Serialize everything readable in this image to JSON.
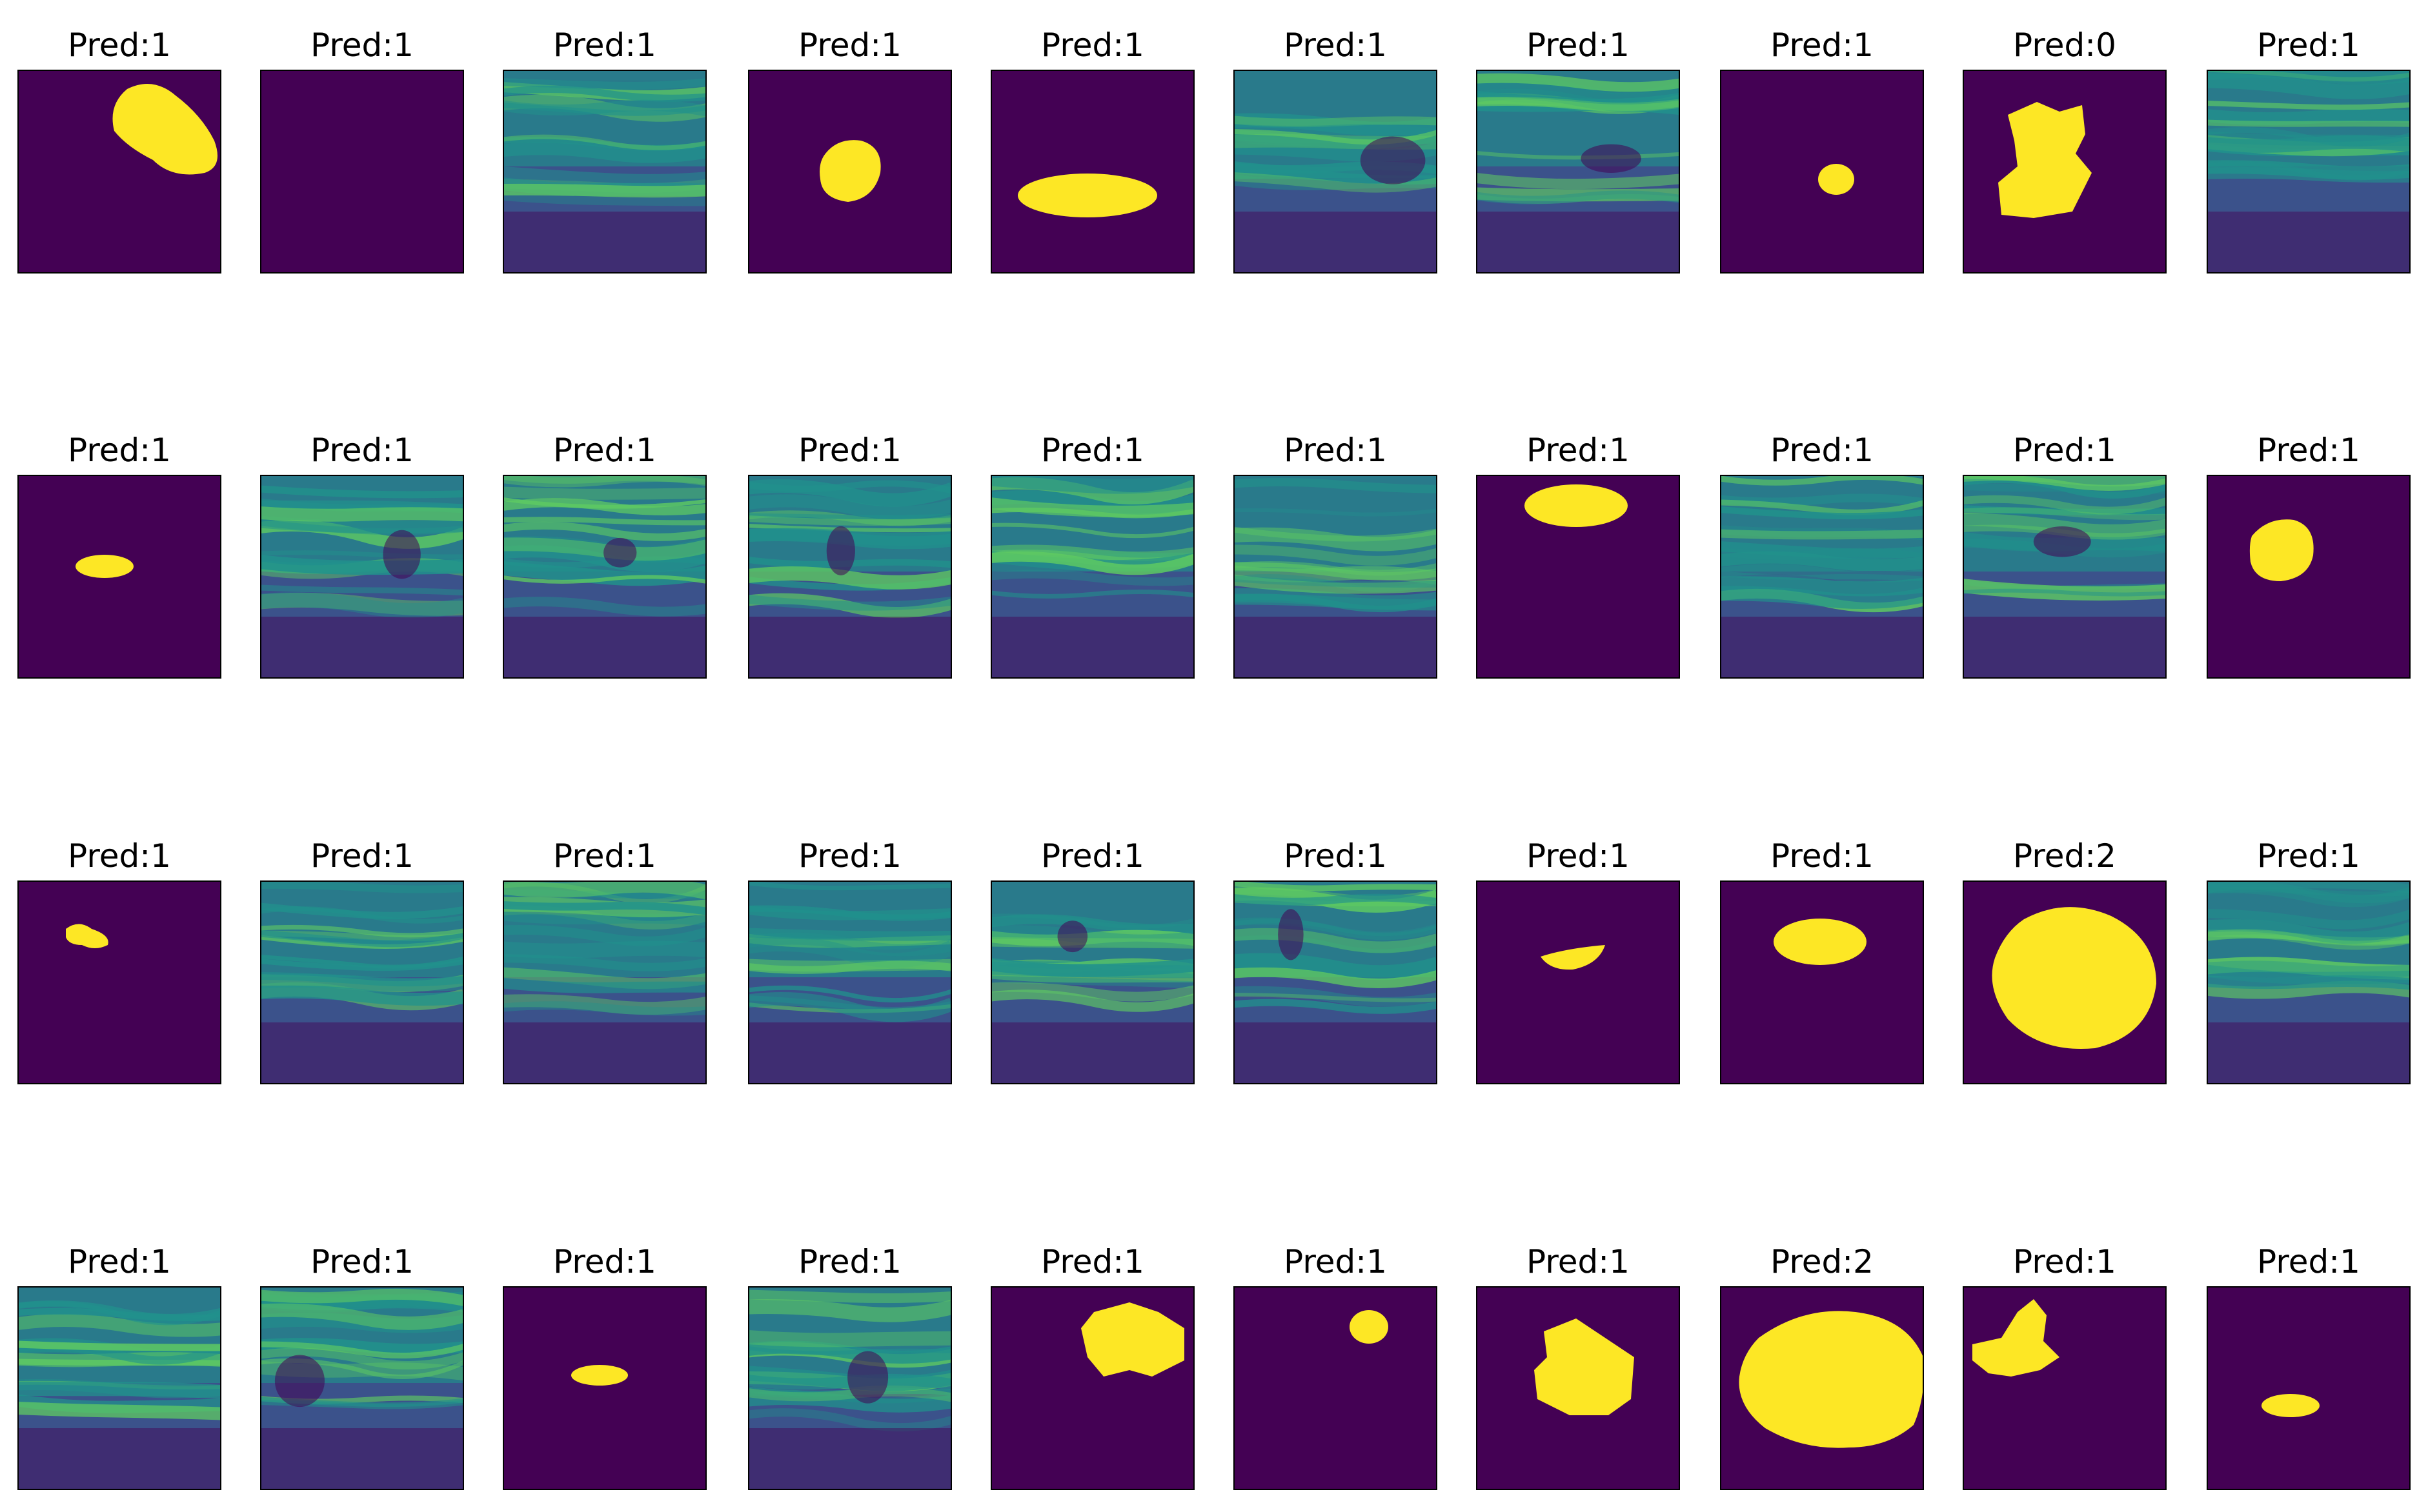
{
  "colors": {
    "background": "#440154",
    "mask": "#fde725",
    "ultrasound_dark": "#3b528b",
    "ultrasound_mid": "#21918c",
    "ultrasound_bright": "#5ec962",
    "frame": "#000000"
  },
  "tiles": [
    {
      "title": "Pred:1",
      "kind": "mask",
      "shape": "blob-top-right"
    },
    {
      "title": "Pred:1",
      "kind": "empty"
    },
    {
      "title": "Pred:1",
      "kind": "ultrasound"
    },
    {
      "title": "Pred:1",
      "kind": "mask",
      "shape": "small-round-center"
    },
    {
      "title": "Pred:1",
      "kind": "mask",
      "shape": "wide-ellipse"
    },
    {
      "title": "Pred:1",
      "kind": "ultrasound"
    },
    {
      "title": "Pred:1",
      "kind": "ultrasound"
    },
    {
      "title": "Pred:1",
      "kind": "mask",
      "shape": "tiny-center"
    },
    {
      "title": "Pred:0",
      "kind": "mask",
      "shape": "irregular-large"
    },
    {
      "title": "Pred:1",
      "kind": "ultrasound"
    },
    {
      "title": "Pred:1",
      "kind": "mask",
      "shape": "small-ellipse-left"
    },
    {
      "title": "Pred:1",
      "kind": "ultrasound"
    },
    {
      "title": "Pred:1",
      "kind": "ultrasound"
    },
    {
      "title": "Pred:1",
      "kind": "ultrasound"
    },
    {
      "title": "Pred:1",
      "kind": "ultrasound"
    },
    {
      "title": "Pred:1",
      "kind": "ultrasound"
    },
    {
      "title": "Pred:1",
      "kind": "mask",
      "shape": "ellipse-top"
    },
    {
      "title": "Pred:1",
      "kind": "ultrasound"
    },
    {
      "title": "Pred:1",
      "kind": "ultrasound"
    },
    {
      "title": "Pred:1",
      "kind": "mask",
      "shape": "round-left"
    },
    {
      "title": "Pred:1",
      "kind": "mask",
      "shape": "tiny-left"
    },
    {
      "title": "Pred:1",
      "kind": "ultrasound"
    },
    {
      "title": "Pred:1",
      "kind": "ultrasound"
    },
    {
      "title": "Pred:1",
      "kind": "ultrasound"
    },
    {
      "title": "Pred:1",
      "kind": "ultrasound"
    },
    {
      "title": "Pred:1",
      "kind": "ultrasound"
    },
    {
      "title": "Pred:1",
      "kind": "mask",
      "shape": "thin-crescent"
    },
    {
      "title": "Pred:1",
      "kind": "mask",
      "shape": "ellipse-mid"
    },
    {
      "title": "Pred:2",
      "kind": "mask",
      "shape": "huge-round"
    },
    {
      "title": "Pred:1",
      "kind": "ultrasound"
    },
    {
      "title": "Pred:1",
      "kind": "ultrasound"
    },
    {
      "title": "Pred:1",
      "kind": "ultrasound"
    },
    {
      "title": "Pred:1",
      "kind": "mask",
      "shape": "small-lozenge"
    },
    {
      "title": "Pred:1",
      "kind": "ultrasound"
    },
    {
      "title": "Pred:1",
      "kind": "mask",
      "shape": "irregular-top-right"
    },
    {
      "title": "Pred:1",
      "kind": "mask",
      "shape": "tiny-top-right"
    },
    {
      "title": "Pred:1",
      "kind": "mask",
      "shape": "irregular-medium"
    },
    {
      "title": "Pred:2",
      "kind": "mask",
      "shape": "huge-irregular"
    },
    {
      "title": "Pred:1",
      "kind": "mask",
      "shape": "irregular-top-left"
    },
    {
      "title": "Pred:1",
      "kind": "mask",
      "shape": "small-lozenge-low"
    }
  ]
}
